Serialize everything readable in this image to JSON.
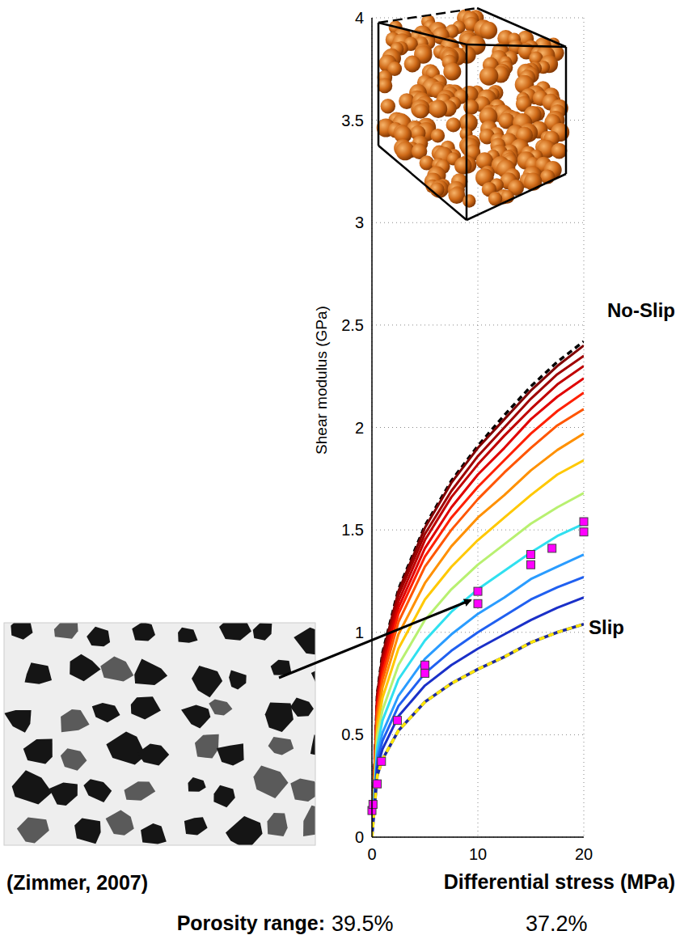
{
  "chart_data": {
    "type": "line",
    "y_label": "Shear modulus (GPa)",
    "x_label": "Differential stress (MPa)",
    "x": [
      0,
      0.5,
      1,
      2.5,
      5,
      7.5,
      10,
      12.5,
      15,
      17.5,
      20
    ],
    "xlim": [
      0,
      20
    ],
    "xticks": [
      0,
      10,
      20
    ],
    "ylim": [
      0,
      4
    ],
    "yticks": [
      0,
      0.5,
      1,
      1.5,
      2,
      2.5,
      3,
      3.5,
      4
    ],
    "grid": true,
    "series": [
      {
        "name": "No-Slip",
        "color": "#000000",
        "line_style": "dashed",
        "values": [
          0,
          0.7,
          0.9,
          1.21,
          1.52,
          1.74,
          1.91,
          2.06,
          2.2,
          2.32,
          2.42
        ]
      },
      {
        "color": "#800000",
        "values": [
          0,
          0.7,
          0.89,
          1.2,
          1.51,
          1.73,
          1.9,
          2.04,
          2.18,
          2.3,
          2.4
        ]
      },
      {
        "color": "#a00000",
        "values": [
          0,
          0.68,
          0.87,
          1.18,
          1.48,
          1.69,
          1.86,
          2.0,
          2.14,
          2.26,
          2.35
        ]
      },
      {
        "color": "#c00000",
        "values": [
          0,
          0.67,
          0.85,
          1.15,
          1.45,
          1.66,
          1.82,
          1.96,
          2.09,
          2.21,
          2.3
        ]
      },
      {
        "color": "#e00000",
        "values": [
          0,
          0.65,
          0.83,
          1.12,
          1.41,
          1.61,
          1.77,
          1.9,
          2.04,
          2.15,
          2.24
        ]
      },
      {
        "color": "#ff2000",
        "values": [
          0,
          0.63,
          0.8,
          1.09,
          1.37,
          1.56,
          1.71,
          1.84,
          1.97,
          2.08,
          2.17
        ]
      },
      {
        "color": "#ff5500",
        "values": [
          0,
          0.61,
          0.77,
          1.05,
          1.32,
          1.5,
          1.65,
          1.78,
          1.9,
          2.01,
          2.09
        ]
      },
      {
        "color": "#ff9000",
        "values": [
          0,
          0.57,
          0.73,
          0.99,
          1.24,
          1.42,
          1.56,
          1.67,
          1.79,
          1.89,
          1.97
        ]
      },
      {
        "color": "#ffc800",
        "values": [
          0,
          0.53,
          0.68,
          0.92,
          1.16,
          1.32,
          1.45,
          1.56,
          1.67,
          1.77,
          1.84
        ]
      },
      {
        "color": "#b8f070",
        "values": [
          0,
          0.49,
          0.62,
          0.84,
          1.06,
          1.21,
          1.33,
          1.43,
          1.53,
          1.61,
          1.68
        ]
      },
      {
        "color": "#30e0f0",
        "values": [
          0,
          0.44,
          0.57,
          0.77,
          0.96,
          1.1,
          1.21,
          1.3,
          1.39,
          1.47,
          1.53
        ]
      },
      {
        "color": "#2a9cff",
        "values": [
          0,
          0.4,
          0.51,
          0.69,
          0.87,
          0.99,
          1.09,
          1.17,
          1.26,
          1.32,
          1.38
        ]
      },
      {
        "color": "#2060f0",
        "values": [
          0,
          0.37,
          0.47,
          0.64,
          0.8,
          0.91,
          1.0,
          1.08,
          1.16,
          1.22,
          1.27
        ]
      },
      {
        "color": "#1a30c8",
        "values": [
          0,
          0.34,
          0.43,
          0.59,
          0.74,
          0.84,
          0.92,
          0.99,
          1.06,
          1.12,
          1.17
        ]
      },
      {
        "name": "Slip",
        "color": "#ffe600",
        "line_style": "dashed",
        "values": [
          0,
          0.3,
          0.38,
          0.52,
          0.66,
          0.75,
          0.82,
          0.88,
          0.95,
          1.0,
          1.04
        ]
      },
      {
        "type": "scatter",
        "marker": "square",
        "color": "#ff00ff",
        "x": [
          0,
          0.1,
          0.5,
          0.9,
          2.4,
          5,
          5,
          10,
          10,
          15,
          15,
          17,
          20,
          20
        ],
        "values": [
          0.13,
          0.16,
          0.26,
          0.37,
          0.57,
          0.8,
          0.84,
          1.14,
          1.2,
          1.33,
          1.38,
          1.41,
          1.49,
          1.54
        ]
      }
    ],
    "annotations": [
      {
        "text": "(Zimmer, 2007)"
      },
      {
        "text": "Porosity range:"
      },
      {
        "text": "39.5%"
      },
      {
        "text": "37.2%"
      }
    ]
  }
}
